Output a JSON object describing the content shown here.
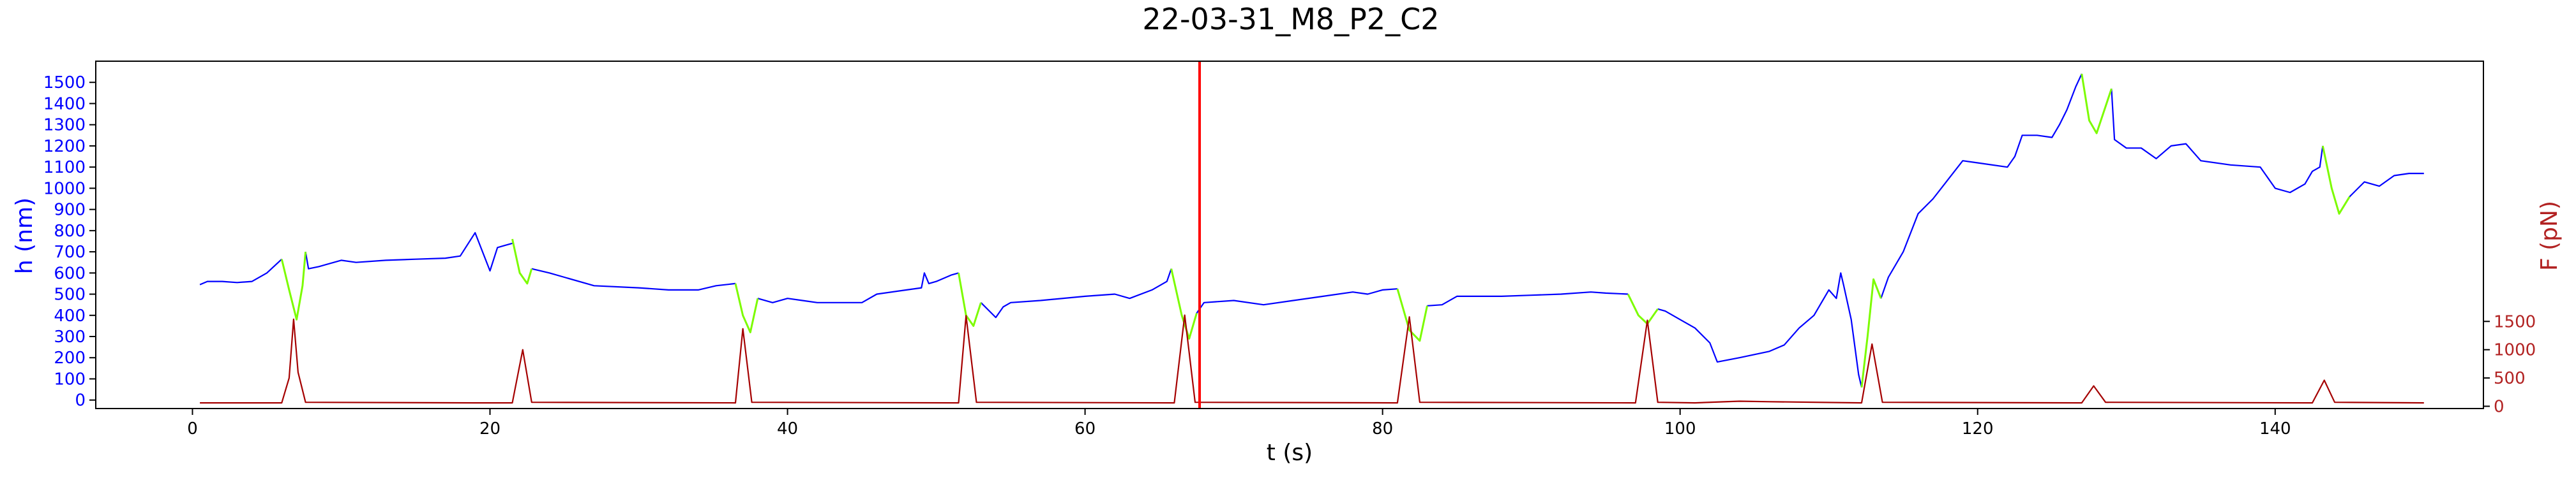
{
  "chart_data": {
    "type": "line",
    "title": "22-03-31_M8_P2_C2",
    "xlabel": "t (s)",
    "ylabel": "h (nm)",
    "y2label": "F (pN)",
    "xlim": [
      -6.5,
      154
    ],
    "ylim": [
      -40,
      1600
    ],
    "y2lim": [
      -40,
      6100
    ],
    "x_ticks": [
      0,
      20,
      40,
      60,
      80,
      100,
      120,
      140
    ],
    "y_ticks": [
      0,
      100,
      200,
      300,
      400,
      500,
      600,
      700,
      800,
      900,
      1000,
      1100,
      1200,
      1300,
      1400,
      1500
    ],
    "y2_ticks": [
      0,
      500,
      1000,
      1500
    ],
    "grid": false,
    "legend": "none",
    "colors": {
      "h": "#0000ff",
      "h_indent": "#7cfc00",
      "force": "#a50000",
      "marker": "#ff0000",
      "left_axis": "#0000ff",
      "right_axis": "#b22222"
    },
    "marker_x": 67.7,
    "series": [
      {
        "key": "h_baseline",
        "color": "#0000ff",
        "segments": [
          [
            [
              0.5,
              545
            ],
            [
              1.0,
              560
            ],
            [
              2.0,
              560
            ],
            [
              3.0,
              555
            ],
            [
              4.0,
              560
            ],
            [
              5.0,
              600
            ],
            [
              6.0,
              665
            ]
          ],
          [
            [
              7.6,
              700
            ],
            [
              7.8,
              620
            ],
            [
              8.5,
              630
            ],
            [
              10,
              660
            ],
            [
              11,
              650
            ],
            [
              13,
              660
            ],
            [
              15,
              665
            ],
            [
              17,
              670
            ],
            [
              18,
              680
            ],
            [
              19,
              790
            ],
            [
              20,
              610
            ],
            [
              20.5,
              720
            ],
            [
              21,
              730
            ],
            [
              21.5,
              740
            ]
          ],
          [
            [
              22.8,
              620
            ],
            [
              24,
              600
            ],
            [
              25,
              580
            ],
            [
              27,
              540
            ],
            [
              30,
              530
            ],
            [
              32,
              520
            ],
            [
              34,
              520
            ],
            [
              35.2,
              540
            ],
            [
              36.5,
              550
            ]
          ],
          [
            [
              38,
              480
            ],
            [
              39,
              460
            ],
            [
              40,
              480
            ],
            [
              41,
              470
            ],
            [
              42,
              460
            ],
            [
              44,
              460
            ],
            [
              45,
              460
            ],
            [
              46,
              500
            ],
            [
              48,
              520
            ],
            [
              49,
              530
            ],
            [
              49.2,
              600
            ],
            [
              49.5,
              550
            ],
            [
              50,
              560
            ],
            [
              51,
              590
            ],
            [
              51.5,
              600
            ]
          ],
          [
            [
              53,
              460
            ],
            [
              54,
              390
            ],
            [
              54.5,
              440
            ],
            [
              55,
              460
            ],
            [
              57,
              470
            ],
            [
              60,
              490
            ],
            [
              62,
              500
            ],
            [
              63,
              480
            ],
            [
              64.5,
              520
            ],
            [
              65.5,
              560
            ],
            [
              65.8,
              620
            ]
          ],
          [
            [
              67.5,
              410
            ],
            [
              68,
              460
            ],
            [
              70,
              470
            ],
            [
              72,
              450
            ],
            [
              74,
              470
            ],
            [
              76,
              490
            ],
            [
              78,
              510
            ],
            [
              79,
              500
            ],
            [
              80,
              520
            ],
            [
              81,
              525
            ]
          ],
          [
            [
              83,
              445
            ],
            [
              84,
              450
            ],
            [
              85,
              490
            ],
            [
              88,
              490
            ],
            [
              90,
              495
            ],
            [
              92,
              500
            ],
            [
              94,
              510
            ],
            [
              95,
              505
            ],
            [
              96.5,
              500
            ]
          ],
          [
            [
              98.5,
              430
            ],
            [
              99,
              420
            ],
            [
              100,
              380
            ],
            [
              101,
              340
            ],
            [
              102,
              270
            ],
            [
              102.5,
              180
            ],
            [
              104,
              200
            ],
            [
              106,
              230
            ],
            [
              107,
              260
            ],
            [
              108,
              340
            ],
            [
              109,
              400
            ],
            [
              110,
              520
            ],
            [
              110.5,
              480
            ],
            [
              110.8,
              600
            ],
            [
              111,
              540
            ],
            [
              111.5,
              380
            ],
            [
              112,
              120
            ],
            [
              112.2,
              60
            ]
          ],
          [
            [
              113.5,
              480
            ],
            [
              114,
              580
            ],
            [
              115,
              700
            ],
            [
              116,
              880
            ],
            [
              117,
              950
            ],
            [
              118,
              1040
            ],
            [
              119,
              1130
            ],
            [
              120,
              1120
            ],
            [
              122,
              1100
            ],
            [
              122.5,
              1150
            ],
            [
              123,
              1250
            ],
            [
              124,
              1250
            ],
            [
              125,
              1240
            ],
            [
              125.5,
              1300
            ],
            [
              126,
              1370
            ],
            [
              126.6,
              1480
            ],
            [
              127,
              1540
            ]
          ],
          [
            [
              129,
              1470
            ],
            [
              129.2,
              1230
            ],
            [
              130,
              1190
            ],
            [
              131,
              1190
            ],
            [
              132,
              1140
            ],
            [
              133,
              1200
            ],
            [
              134,
              1210
            ],
            [
              135,
              1130
            ],
            [
              137,
              1110
            ],
            [
              139,
              1100
            ],
            [
              140,
              1000
            ],
            [
              141,
              980
            ],
            [
              142,
              1020
            ],
            [
              142.5,
              1080
            ],
            [
              143,
              1100
            ],
            [
              143.2,
              1200
            ]
          ],
          [
            [
              145,
              960
            ],
            [
              146,
              1030
            ],
            [
              147,
              1010
            ],
            [
              148,
              1060
            ],
            [
              149,
              1070
            ],
            [
              150,
              1070
            ]
          ]
        ]
      },
      {
        "key": "h_indent",
        "color": "#7cfc00",
        "segments": [
          [
            [
              6.0,
              665
            ],
            [
              6.5,
              520
            ],
            [
              7.0,
              380
            ],
            [
              7.4,
              540
            ],
            [
              7.6,
              700
            ]
          ],
          [
            [
              21.5,
              760
            ],
            [
              22,
              600
            ],
            [
              22.5,
              550
            ],
            [
              22.8,
              620
            ]
          ],
          [
            [
              36.5,
              550
            ],
            [
              37,
              400
            ],
            [
              37.5,
              320
            ],
            [
              38,
              480
            ]
          ],
          [
            [
              51.5,
              600
            ],
            [
              52,
              400
            ],
            [
              52.5,
              350
            ],
            [
              53,
              460
            ]
          ],
          [
            [
              65.8,
              620
            ],
            [
              66.5,
              400
            ],
            [
              67,
              290
            ],
            [
              67.5,
              410
            ]
          ],
          [
            [
              81,
              525
            ],
            [
              81.8,
              330
            ],
            [
              82.5,
              280
            ],
            [
              83,
              445
            ]
          ],
          [
            [
              96.5,
              500
            ],
            [
              97.2,
              400
            ],
            [
              97.8,
              360
            ],
            [
              98.5,
              430
            ]
          ],
          [
            [
              112.2,
              60
            ],
            [
              112.6,
              300
            ],
            [
              113,
              570
            ],
            [
              113.5,
              480
            ]
          ],
          [
            [
              127,
              1540
            ],
            [
              127.5,
              1320
            ],
            [
              128,
              1260
            ],
            [
              129,
              1470
            ]
          ],
          [
            [
              143.2,
              1200
            ],
            [
              143.8,
              1000
            ],
            [
              144.3,
              880
            ],
            [
              145,
              960
            ]
          ]
        ]
      },
      {
        "key": "force",
        "color": "#a50000",
        "axis": "right",
        "points": [
          [
            0.5,
            60
          ],
          [
            5.5,
            60
          ],
          [
            6.0,
            60
          ],
          [
            6.5,
            500
          ],
          [
            6.8,
            1540
          ],
          [
            7.1,
            600
          ],
          [
            7.6,
            70
          ],
          [
            19,
            60
          ],
          [
            21.5,
            60
          ],
          [
            22.2,
            1000
          ],
          [
            22.8,
            70
          ],
          [
            36.5,
            60
          ],
          [
            37,
            1370
          ],
          [
            37.6,
            70
          ],
          [
            51.5,
            60
          ],
          [
            52,
            1600
          ],
          [
            52.7,
            70
          ],
          [
            66,
            60
          ],
          [
            66.7,
            1610
          ],
          [
            67.4,
            70
          ],
          [
            81,
            60
          ],
          [
            81.8,
            1580
          ],
          [
            82.5,
            70
          ],
          [
            97,
            60
          ],
          [
            97.8,
            1520
          ],
          [
            98.5,
            70
          ],
          [
            101,
            60
          ],
          [
            104,
            90
          ],
          [
            106,
            80
          ],
          [
            112.2,
            60
          ],
          [
            112.9,
            1100
          ],
          [
            113.6,
            70
          ],
          [
            127,
            60
          ],
          [
            127.8,
            360
          ],
          [
            128.6,
            70
          ],
          [
            142.5,
            60
          ],
          [
            143.3,
            460
          ],
          [
            144,
            70
          ],
          [
            150,
            60
          ]
        ]
      }
    ]
  }
}
